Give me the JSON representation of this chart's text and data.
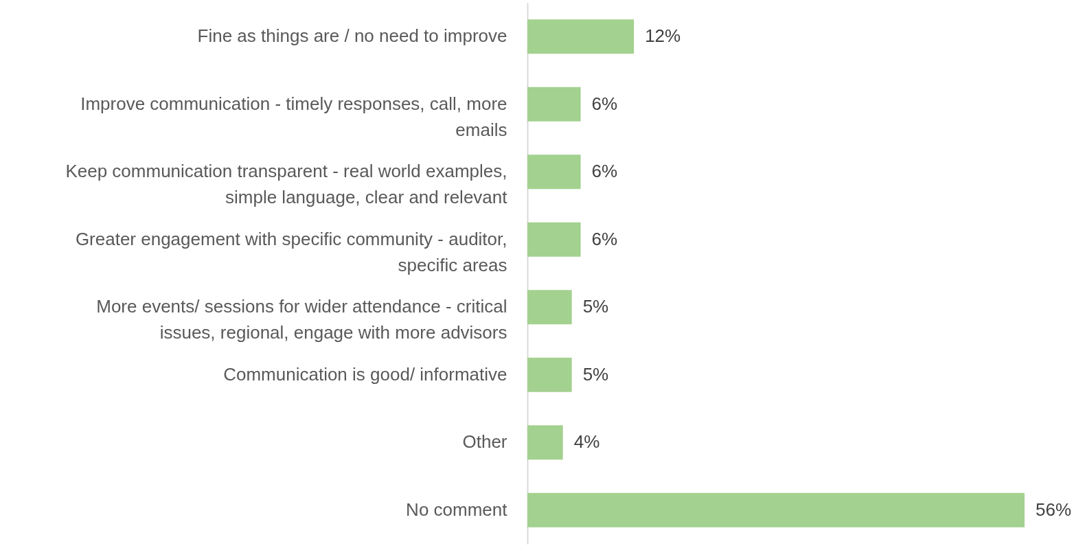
{
  "chart_data": {
    "type": "bar",
    "orientation": "horizontal",
    "data_labels": true,
    "categories": [
      "Fine as things are / no need to improve",
      "Improve communication  - timely responses, call, more emails",
      "Keep communication transparent - real world examples, simple language, clear and relevant",
      "Greater engagement with specific community - auditor, specific areas",
      "More events/ sessions for wider attendance - critical issues, regional, engage with more advisors",
      "Communication is good/ informative",
      "Other",
      "No comment"
    ],
    "values": [
      12,
      6,
      6,
      6,
      5,
      5,
      4,
      56
    ],
    "color": "#a3d18f",
    "value_labels": [
      "12%",
      "6%",
      "6%",
      "6%",
      "5%",
      "5%",
      "4%",
      "56%"
    ]
  }
}
